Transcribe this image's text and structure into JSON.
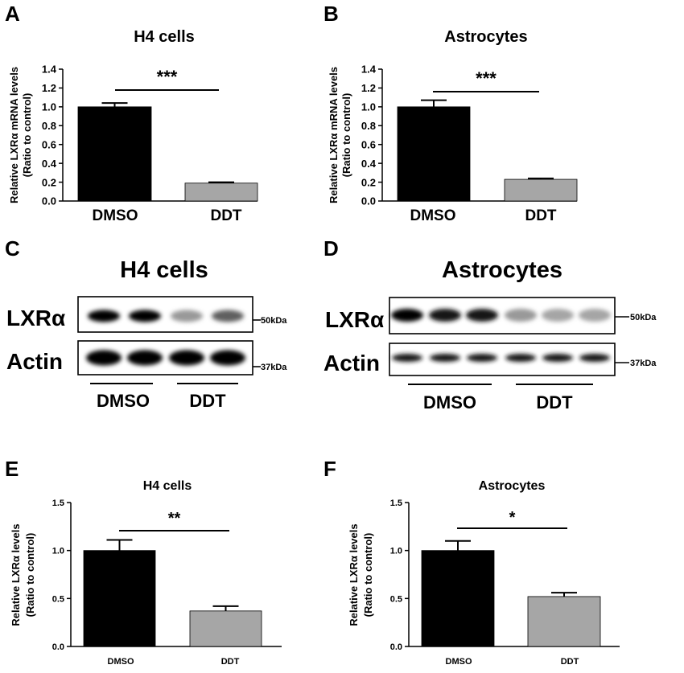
{
  "panels": {
    "A": "A",
    "B": "B",
    "C": "C",
    "D": "D",
    "E": "E",
    "F": "F"
  },
  "western_blots": [
    {
      "id": "C",
      "title": "H4 cells",
      "rows": [
        {
          "label": "LXRα",
          "marker": "50kDa",
          "band_intensity": [
            1,
            1,
            0.35,
            0.6
          ]
        },
        {
          "label": "Actin",
          "marker": "37kDa",
          "band_intensity": [
            1,
            1,
            1,
            1
          ]
        }
      ],
      "groups": [
        {
          "label": "DMSO",
          "lanes": 2
        },
        {
          "label": "DDT",
          "lanes": 2
        }
      ]
    },
    {
      "id": "D",
      "title": "Astrocytes",
      "rows": [
        {
          "label": "LXRα",
          "marker": "50kDa",
          "band_intensity": [
            1,
            0.9,
            0.9,
            0.35,
            0.3,
            0.3
          ]
        },
        {
          "label": "Actin",
          "marker": "37kDa",
          "band_intensity": [
            0.9,
            0.9,
            0.9,
            0.9,
            0.9,
            0.9
          ]
        }
      ],
      "groups": [
        {
          "label": "DMSO",
          "lanes": 3
        },
        {
          "label": "DDT",
          "lanes": 3
        }
      ]
    }
  ],
  "chart_data": [
    {
      "id": "A",
      "type": "bar",
      "title": "H4 cells",
      "categories": [
        "DMSO",
        "DDT"
      ],
      "values": [
        1.0,
        0.19
      ],
      "errors": [
        0.04,
        0.01
      ],
      "ylabel": [
        "Relative LXRα mRNA  levels",
        "(Ratio to control)"
      ],
      "ylim": [
        0,
        1.4
      ],
      "yticks": [
        "0.0",
        "0.2",
        "0.4",
        "0.6",
        "0.8",
        "1.0",
        "1.2",
        "1.4"
      ],
      "significance": "***",
      "colors": [
        "#000000",
        "#a6a6a6"
      ]
    },
    {
      "id": "B",
      "type": "bar",
      "title": "Astrocytes",
      "categories": [
        "DMSO",
        "DDT"
      ],
      "values": [
        1.0,
        0.23
      ],
      "errors": [
        0.07,
        0.01
      ],
      "ylabel": [
        "Relative LXRα mRNA  levels",
        "(Ratio to control)"
      ],
      "ylim": [
        0,
        1.4
      ],
      "yticks": [
        "0.0",
        "0.2",
        "0.4",
        "0.6",
        "0.8",
        "1.0",
        "1.2",
        "1.4"
      ],
      "significance": "***",
      "colors": [
        "#000000",
        "#a6a6a6"
      ]
    },
    {
      "id": "E",
      "type": "bar",
      "title": "H4 cells",
      "categories": [
        "DMSO",
        "DDT"
      ],
      "values": [
        1.0,
        0.37
      ],
      "errors": [
        0.11,
        0.05
      ],
      "ylabel": [
        "Relative LXRα levels",
        "(Ratio to control)"
      ],
      "ylim": [
        0,
        1.5
      ],
      "yticks": [
        "0.0",
        "0.5",
        "1.0",
        "1.5"
      ],
      "significance": "**",
      "colors": [
        "#000000",
        "#a6a6a6"
      ]
    },
    {
      "id": "F",
      "type": "bar",
      "title": "Astrocytes",
      "categories": [
        "DMSO",
        "DDT"
      ],
      "values": [
        1.0,
        0.52
      ],
      "errors": [
        0.1,
        0.04
      ],
      "ylabel": [
        "Relative LXRα levels",
        "(Ratio to control)"
      ],
      "ylim": [
        0,
        1.5
      ],
      "yticks": [
        "0.0",
        "0.5",
        "1.0",
        "1.5"
      ],
      "significance": "*",
      "colors": [
        "#000000",
        "#a6a6a6"
      ]
    }
  ]
}
